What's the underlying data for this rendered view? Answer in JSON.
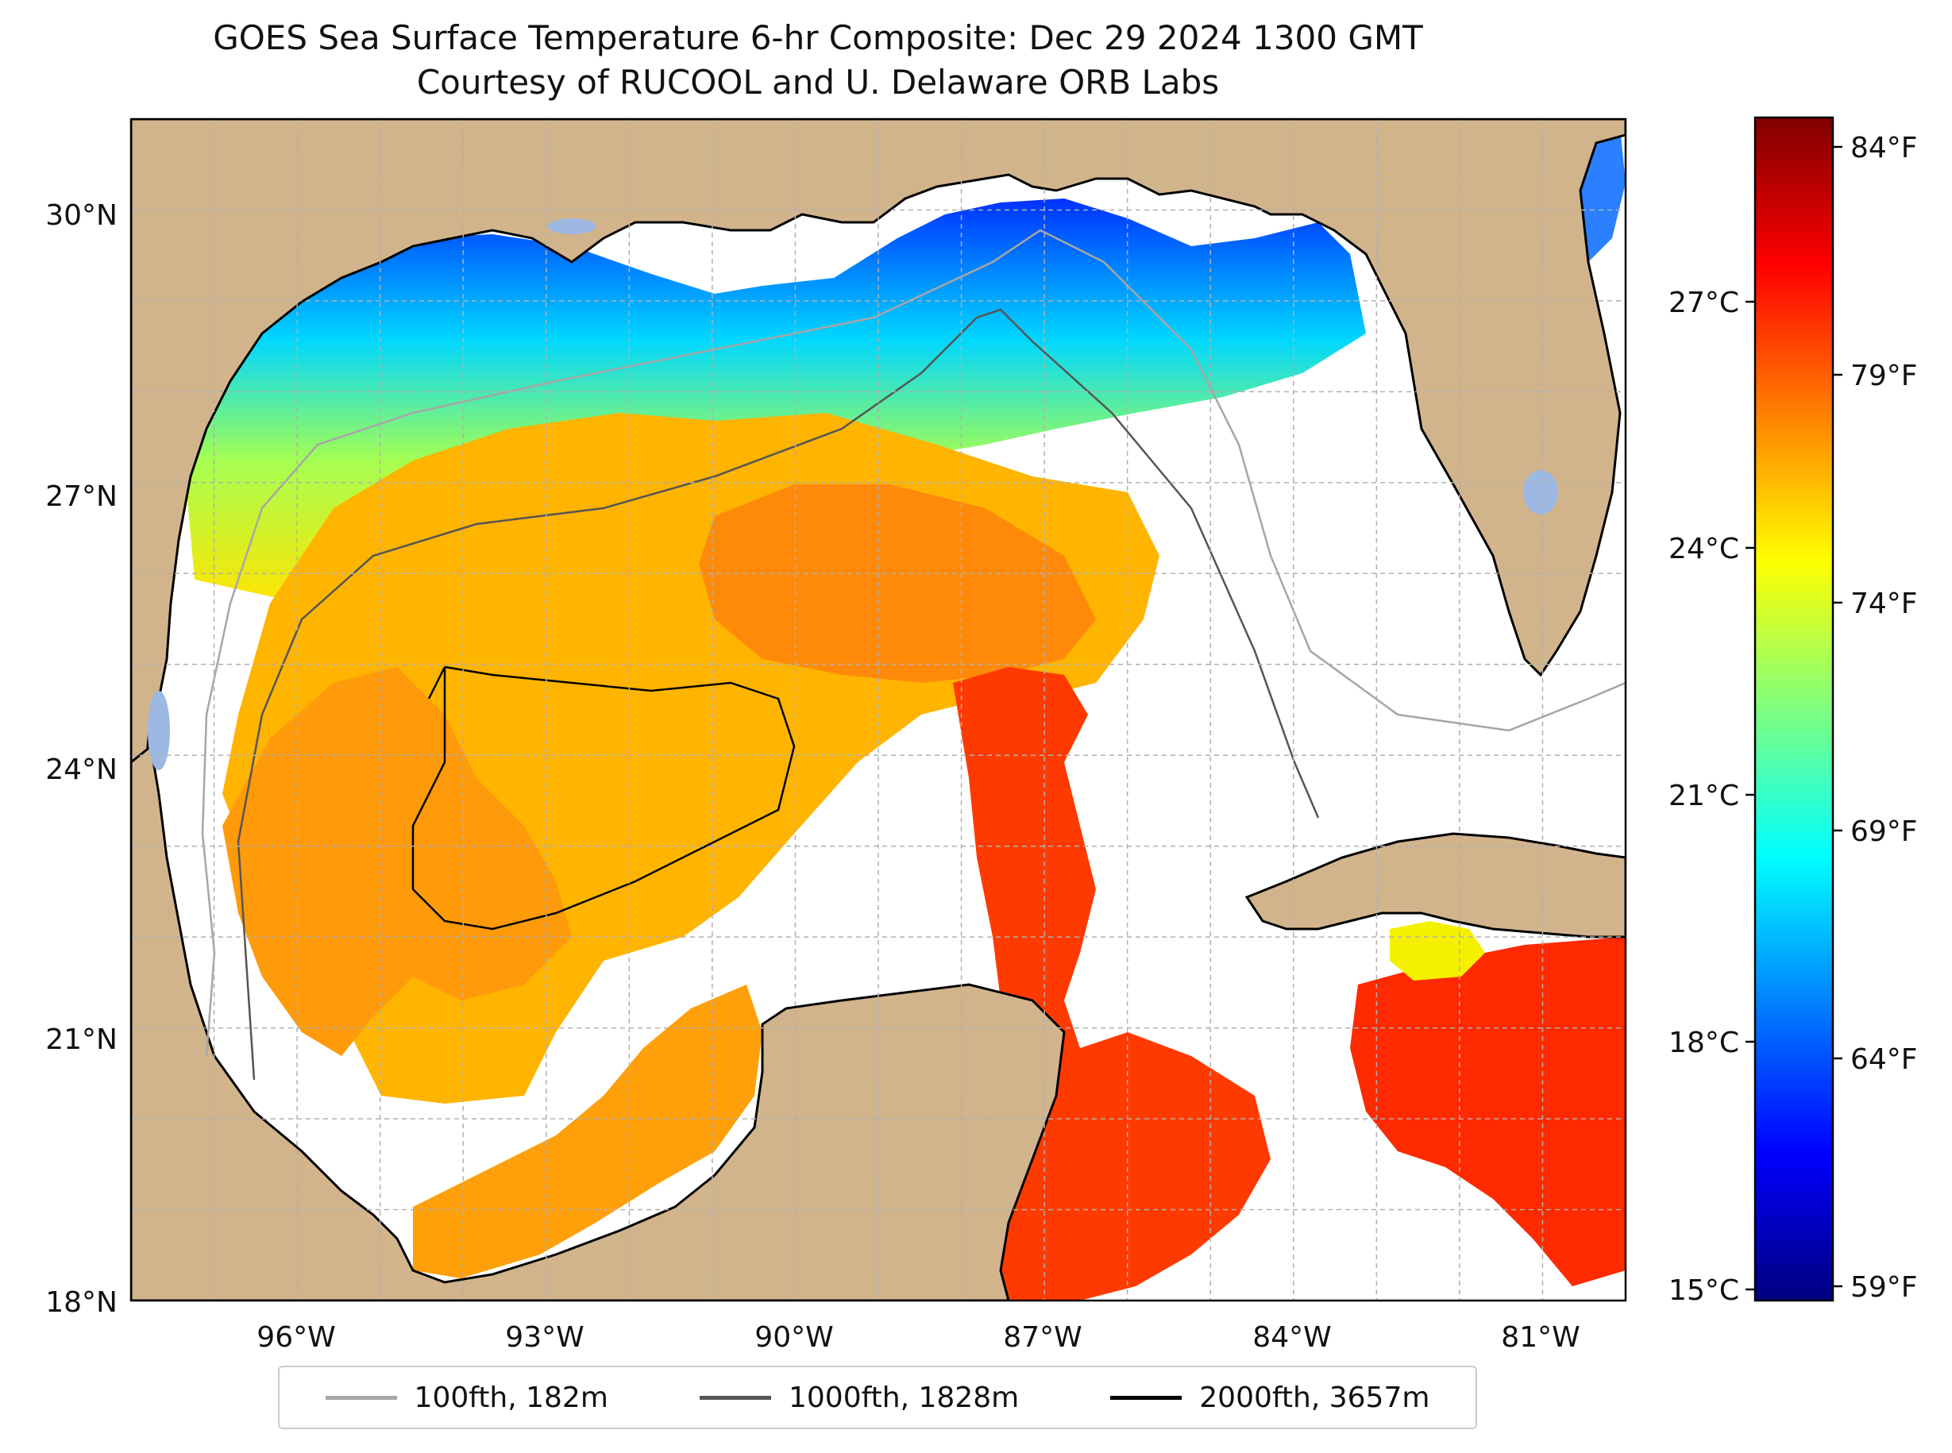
{
  "title": {
    "line1": "GOES Sea Surface Temperature 6-hr Composite: Dec 29 2024 1300 GMT",
    "line2": "Courtesy of RUCOOL and U. Delaware ORB Labs"
  },
  "map": {
    "lat_labels": [
      "30°N",
      "27°N",
      "24°N",
      "21°N",
      "18°N"
    ],
    "lon_labels": [
      "96°W",
      "93°W",
      "90°W",
      "87°W",
      "84°W",
      "81°W"
    ],
    "extent": {
      "lon": [
        -98,
        -80
      ],
      "lat": [
        18,
        31
      ]
    },
    "colors": {
      "land": "#d2b48c",
      "no_data": "#ffffff",
      "inland_water": "#9cb8e3",
      "grid": "#b0b0b0"
    }
  },
  "colorbar": {
    "celsius_labels": [
      "27°C",
      "24°C",
      "21°C",
      "18°C",
      "15°C"
    ],
    "fahrenheit_labels": [
      "84°F",
      "79°F",
      "74°F",
      "69°F",
      "64°F",
      "59°F"
    ],
    "range_f": [
      58.5,
      85
    ],
    "colormap": "jet"
  },
  "legend": [
    {
      "label": "100fth, 182m",
      "color": "#a6a6a6"
    },
    {
      "label": "1000fth, 1828m",
      "color": "#555555"
    },
    {
      "label": "2000fth, 3657m",
      "color": "#000000"
    }
  ]
}
